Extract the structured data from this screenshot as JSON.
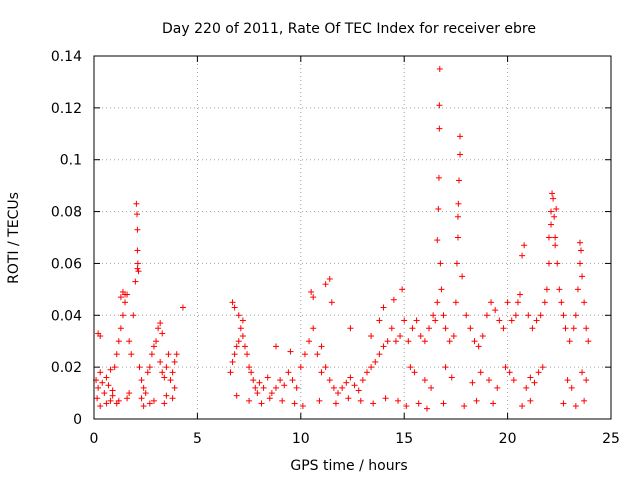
{
  "chart_data": {
    "type": "scatter",
    "title": "Day 220 of 2011, Rate Of TEC Index for receiver ebre",
    "xlabel": "GPS time / hours",
    "ylabel": "ROTI / TECUs",
    "xlim": [
      0,
      25
    ],
    "ylim": [
      0,
      0.14
    ],
    "xticks": [
      "0",
      "5",
      "10",
      "15",
      "20",
      "25"
    ],
    "yticks": [
      "0",
      "0.02",
      "0.04",
      "0.06",
      "0.08",
      "0.1",
      "0.12",
      "0.14"
    ],
    "grid": true,
    "marker": "+",
    "color": "#ff0000",
    "series": [
      {
        "x": [
          0.1,
          0.2,
          0.3,
          0.4,
          0.5,
          0.6,
          0.7,
          0.8,
          0.9,
          1.0,
          1.1,
          1.2,
          1.3,
          1.4,
          1.5,
          1.6,
          1.7,
          1.8,
          1.9,
          2.0,
          2.1,
          2.2,
          2.3,
          2.4,
          2.5,
          2.6,
          2.7,
          2.8,
          2.9,
          3.0,
          3.1,
          3.2,
          3.3,
          3.4,
          3.5,
          3.6,
          3.7,
          3.8,
          3.9,
          4.0,
          0.2,
          0.3,
          1.3,
          1.4,
          1.5,
          2.05,
          2.08,
          2.1,
          2.1,
          2.12,
          2.15,
          3.2,
          3.3,
          4.3,
          0.15,
          0.6,
          0.9,
          1.2,
          1.7,
          2.3,
          2.7,
          3.5,
          3.9,
          6.6,
          6.7,
          6.8,
          6.9,
          7.0,
          7.1,
          7.2,
          7.3,
          7.4,
          7.5,
          7.6,
          7.7,
          7.8,
          7.9,
          8.0,
          8.2,
          8.4,
          8.6,
          8.8,
          9.0,
          9.2,
          9.4,
          9.6,
          9.8,
          10.0,
          10.2,
          10.4,
          10.6,
          10.8,
          11.0,
          11.2,
          11.4,
          11.6,
          11.8,
          12.0,
          12.2,
          12.4,
          12.6,
          12.8,
          13.0,
          13.2,
          13.4,
          13.6,
          13.8,
          14.0,
          14.2,
          14.4,
          14.6,
          14.8,
          15.0,
          6.7,
          6.8,
          7.0,
          7.2,
          8.8,
          9.5,
          10.5,
          10.6,
          11.0,
          11.2,
          11.4,
          11.5,
          12.4,
          13.4,
          13.8,
          14.0,
          14.5,
          14.9,
          15.2,
          15.4,
          15.6,
          15.8,
          16.0,
          16.2,
          16.4,
          16.5,
          16.6,
          16.6,
          16.65,
          16.68,
          16.7,
          16.7,
          16.72,
          16.75,
          16.8,
          16.9,
          17.0,
          17.2,
          17.4,
          17.5,
          17.55,
          17.6,
          17.6,
          17.62,
          17.65,
          17.7,
          17.7,
          17.8,
          18.0,
          18.2,
          18.4,
          18.6,
          18.8,
          19.0,
          19.2,
          19.4,
          19.6,
          19.8,
          20.0,
          20.2,
          20.4,
          20.5,
          20.6,
          20.7,
          20.8,
          21.0,
          21.2,
          21.4,
          21.6,
          21.8,
          21.9,
          22.0,
          22.0,
          22.1,
          22.1,
          22.15,
          22.2,
          22.25,
          22.3,
          22.3,
          22.35,
          22.4,
          22.5,
          22.6,
          22.7,
          22.8,
          23.0,
          23.2,
          23.3,
          23.4,
          23.5,
          23.5,
          23.55,
          23.6,
          23.7,
          23.8,
          23.9,
          15.3,
          15.5,
          16.0,
          16.3,
          17.0,
          17.3,
          18.3,
          18.7,
          19.1,
          19.5,
          19.9,
          20.1,
          20.3,
          20.9,
          21.1,
          21.3,
          21.5,
          21.7,
          22.9,
          23.1,
          23.6,
          23.8,
          0.3,
          0.8,
          1.1,
          1.6,
          2.4,
          2.9,
          3.4,
          3.8,
          6.9,
          7.5,
          8.1,
          8.5,
          9.1,
          9.7,
          10.1,
          10.9,
          11.7,
          12.3,
          12.9,
          13.5,
          14.1,
          14.7,
          15.1,
          15.7,
          16.1,
          16.9,
          17.9,
          18.5,
          19.3,
          20.7,
          21.1,
          22.7,
          23.3,
          23.7
        ],
        "y": [
          0.015,
          0.012,
          0.018,
          0.014,
          0.01,
          0.016,
          0.013,
          0.019,
          0.011,
          0.02,
          0.025,
          0.03,
          0.035,
          0.04,
          0.045,
          0.048,
          0.03,
          0.025,
          0.04,
          0.053,
          0.058,
          0.02,
          0.015,
          0.012,
          0.01,
          0.018,
          0.02,
          0.025,
          0.028,
          0.03,
          0.035,
          0.022,
          0.018,
          0.016,
          0.02,
          0.025,
          0.015,
          0.018,
          0.022,
          0.025,
          0.033,
          0.032,
          0.047,
          0.049,
          0.048,
          0.083,
          0.079,
          0.073,
          0.065,
          0.06,
          0.057,
          0.037,
          0.033,
          0.043,
          0.008,
          0.006,
          0.009,
          0.007,
          0.01,
          0.008,
          0.006,
          0.009,
          0.012,
          0.018,
          0.022,
          0.025,
          0.028,
          0.03,
          0.035,
          0.032,
          0.028,
          0.025,
          0.02,
          0.018,
          0.015,
          0.012,
          0.01,
          0.014,
          0.012,
          0.016,
          0.01,
          0.012,
          0.015,
          0.013,
          0.018,
          0.015,
          0.012,
          0.02,
          0.025,
          0.03,
          0.035,
          0.025,
          0.018,
          0.02,
          0.015,
          0.012,
          0.01,
          0.012,
          0.014,
          0.016,
          0.013,
          0.011,
          0.015,
          0.018,
          0.02,
          0.022,
          0.025,
          0.028,
          0.03,
          0.035,
          0.03,
          0.032,
          0.038,
          0.045,
          0.043,
          0.04,
          0.038,
          0.028,
          0.026,
          0.049,
          0.047,
          0.028,
          0.052,
          0.054,
          0.045,
          0.035,
          0.032,
          0.038,
          0.043,
          0.046,
          0.05,
          0.03,
          0.035,
          0.038,
          0.032,
          0.03,
          0.035,
          0.04,
          0.038,
          0.045,
          0.069,
          0.081,
          0.093,
          0.112,
          0.121,
          0.135,
          0.06,
          0.05,
          0.04,
          0.035,
          0.03,
          0.032,
          0.045,
          0.06,
          0.07,
          0.078,
          0.083,
          0.092,
          0.102,
          0.109,
          0.055,
          0.04,
          0.035,
          0.03,
          0.028,
          0.032,
          0.04,
          0.045,
          0.042,
          0.038,
          0.035,
          0.045,
          0.038,
          0.04,
          0.045,
          0.048,
          0.063,
          0.067,
          0.04,
          0.035,
          0.038,
          0.04,
          0.045,
          0.05,
          0.06,
          0.07,
          0.075,
          0.08,
          0.087,
          0.085,
          0.078,
          0.067,
          0.07,
          0.081,
          0.06,
          0.05,
          0.045,
          0.04,
          0.035,
          0.03,
          0.035,
          0.04,
          0.05,
          0.06,
          0.068,
          0.065,
          0.055,
          0.045,
          0.035,
          0.03,
          0.02,
          0.018,
          0.015,
          0.012,
          0.02,
          0.016,
          0.014,
          0.018,
          0.015,
          0.012,
          0.02,
          0.018,
          0.015,
          0.012,
          0.016,
          0.014,
          0.018,
          0.02,
          0.015,
          0.012,
          0.018,
          0.015,
          0.005,
          0.007,
          0.006,
          0.008,
          0.005,
          0.007,
          0.006,
          0.008,
          0.009,
          0.007,
          0.006,
          0.008,
          0.007,
          0.006,
          0.005,
          0.007,
          0.006,
          0.008,
          0.007,
          0.006,
          0.008,
          0.007,
          0.005,
          0.006,
          0.004,
          0.006,
          0.005,
          0.007,
          0.006,
          0.005,
          0.007,
          0.006,
          0.005,
          0.007
        ]
      }
    ]
  }
}
